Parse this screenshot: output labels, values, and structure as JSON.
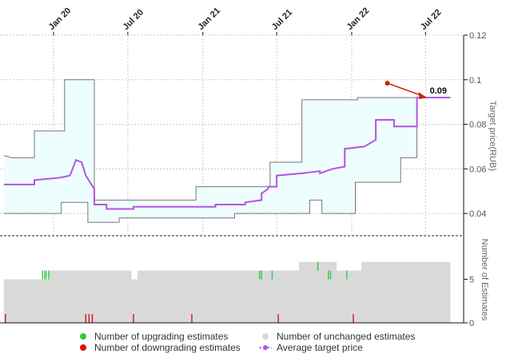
{
  "chart_data": {
    "type": "line",
    "x_labels": [
      "Jan 20",
      "Jul 20",
      "Jan 21",
      "Jul 21",
      "Jan 22",
      "Jul 22"
    ],
    "upper_panel": {
      "ylabel": "Target price(RUB)",
      "yticks": [
        "0.04",
        "0.06",
        "0.08",
        "0.1",
        "0.12"
      ],
      "ylim": [
        0.03,
        0.12
      ],
      "series": [
        {
          "name": "Average target price",
          "color": "#b455e0",
          "points": [
            [
              "2019-09-01",
              0.053
            ],
            [
              "2019-11-15",
              0.053
            ],
            [
              "2019-11-15",
              0.055
            ],
            [
              "2020-01-15",
              0.056
            ],
            [
              "2020-02-10",
              0.057
            ],
            [
              "2020-02-25",
              0.064
            ],
            [
              "2020-03-10",
              0.063
            ],
            [
              "2020-03-20",
              0.057
            ],
            [
              "2020-04-10",
              0.051
            ],
            [
              "2020-04-10",
              0.044
            ],
            [
              "2020-05-10",
              0.044
            ],
            [
              "2020-05-10",
              0.042
            ],
            [
              "2020-07-15",
              0.042
            ],
            [
              "2020-07-15",
              0.043
            ],
            [
              "2021-02-01",
              0.043
            ],
            [
              "2021-02-01",
              0.044
            ],
            [
              "2021-04-15",
              0.044
            ],
            [
              "2021-04-15",
              0.045
            ],
            [
              "2021-05-25",
              0.046
            ],
            [
              "2021-05-25",
              0.049
            ],
            [
              "2021-06-10",
              0.051
            ],
            [
              "2021-06-10",
              0.052
            ],
            [
              "2021-07-01",
              0.052
            ],
            [
              "2021-07-01",
              0.057
            ],
            [
              "2021-09-01",
              0.058
            ],
            [
              "2021-10-15",
              0.059
            ],
            [
              "2021-10-15",
              0.058
            ],
            [
              "2021-11-15",
              0.06
            ],
            [
              "2021-12-15",
              0.061
            ],
            [
              "2021-12-15",
              0.069
            ],
            [
              "2022-02-01",
              0.07
            ],
            [
              "2022-03-01",
              0.073
            ],
            [
              "2022-03-01",
              0.082
            ],
            [
              "2022-04-15",
              0.082
            ],
            [
              "2022-04-15",
              0.079
            ],
            [
              "2022-06-10",
              0.079
            ],
            [
              "2022-06-10",
              0.092
            ],
            [
              "2022-08-31",
              0.092
            ]
          ]
        },
        {
          "name": "High target price",
          "color": "#777777",
          "points": [
            [
              "2019-09-01",
              0.066
            ],
            [
              "2019-09-20",
              0.065
            ],
            [
              "2019-11-15",
              0.065
            ],
            [
              "2019-11-15",
              0.077
            ],
            [
              "2020-01-28",
              0.077
            ],
            [
              "2020-01-28",
              0.1
            ],
            [
              "2020-04-10",
              0.1
            ],
            [
              "2020-04-10",
              0.046
            ],
            [
              "2020-12-15",
              0.046
            ],
            [
              "2020-12-15",
              0.052
            ],
            [
              "2021-06-15",
              0.052
            ],
            [
              "2021-06-15",
              0.063
            ],
            [
              "2021-09-01",
              0.063
            ],
            [
              "2021-09-01",
              0.091
            ],
            [
              "2022-01-15",
              0.091
            ],
            [
              "2022-01-15",
              0.092
            ],
            [
              "2022-08-31",
              0.092
            ]
          ]
        },
        {
          "name": "Low target price",
          "color": "#777777",
          "points": [
            [
              "2019-09-01",
              0.04
            ],
            [
              "2020-01-20",
              0.04
            ],
            [
              "2020-01-20",
              0.045
            ],
            [
              "2020-03-25",
              0.045
            ],
            [
              "2020-03-25",
              0.036
            ],
            [
              "2020-06-10",
              0.036
            ],
            [
              "2020-06-10",
              0.038
            ],
            [
              "2021-03-20",
              0.038
            ],
            [
              "2021-03-20",
              0.04
            ],
            [
              "2021-09-20",
              0.04
            ],
            [
              "2021-09-20",
              0.046
            ],
            [
              "2021-10-20",
              0.046
            ],
            [
              "2021-10-20",
              0.04
            ],
            [
              "2022-01-10",
              0.04
            ],
            [
              "2022-01-10",
              0.054
            ],
            [
              "2022-05-01",
              0.054
            ],
            [
              "2022-05-01",
              0.065
            ],
            [
              "2022-06-10",
              0.065
            ],
            [
              "2022-06-10",
              0.092
            ],
            [
              "2022-08-31",
              0.092
            ]
          ]
        }
      ],
      "annotation": {
        "text": "0.09",
        "x": "2022-06-10",
        "y": 0.092
      }
    },
    "lower_panel": {
      "ylabel": "Number of Estimates",
      "yticks": [
        "0",
        "5"
      ],
      "ylim": [
        0,
        10
      ],
      "unchanged_steps": [
        [
          "2019-09-01",
          5
        ],
        [
          "2019-12-20",
          6
        ],
        [
          "2020-07-10",
          5
        ],
        [
          "2020-07-25",
          6
        ],
        [
          "2021-08-25",
          7
        ],
        [
          "2021-11-25",
          6
        ],
        [
          "2022-01-25",
          7
        ],
        [
          "2022-08-31",
          7
        ]
      ],
      "upgrading": [
        [
          "2019-12-05",
          5,
          6
        ],
        [
          "2019-12-10",
          5,
          6
        ],
        [
          "2019-12-14",
          5,
          6
        ],
        [
          "2019-12-20",
          5,
          6
        ],
        [
          "2021-05-20",
          5,
          6
        ],
        [
          "2021-05-25",
          5,
          6
        ],
        [
          "2021-06-20",
          5,
          6
        ],
        [
          "2021-10-10",
          6,
          7
        ],
        [
          "2021-11-05",
          5,
          6
        ],
        [
          "2021-11-10",
          5,
          6
        ],
        [
          "2021-12-20",
          5,
          6
        ]
      ],
      "downgrading": [
        [
          "2019-09-05",
          0,
          1
        ],
        [
          "2020-03-20",
          0,
          1
        ],
        [
          "2020-03-28",
          0,
          1
        ],
        [
          "2020-04-05",
          0,
          1
        ],
        [
          "2020-07-15",
          0,
          1
        ],
        [
          "2020-12-05",
          0,
          1
        ],
        [
          "2021-07-05",
          0,
          1
        ],
        [
          "2022-01-05",
          0,
          1
        ]
      ]
    },
    "legend": [
      {
        "label": "Number of upgrading estimates",
        "color": "#2ecc40",
        "marker": "dot"
      },
      {
        "label": "Number of unchanged estimates",
        "color": "#d9d9d9",
        "marker": "dot"
      },
      {
        "label": "Number of downgrading estimates",
        "color": "#dd1111",
        "marker": "dot"
      },
      {
        "label": "Average target price",
        "color": "#b455e0",
        "marker": "line-dot"
      }
    ],
    "colors": {
      "band": "#eefdfd",
      "grid": "#cccccc",
      "arrow": "#cc2200"
    }
  }
}
